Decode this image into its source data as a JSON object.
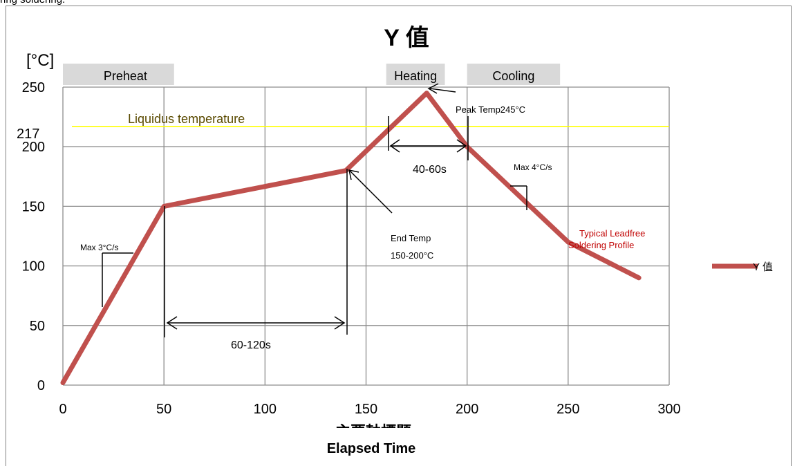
{
  "caption": "ring soldering.",
  "chart_data": {
    "type": "line",
    "title": "Y 值",
    "xlabel": "",
    "x_axis_title_clipped": "主要軸標題",
    "bottom_title": "Elapsed Time",
    "ylabel": "[°C]",
    "xlim": [
      0,
      300
    ],
    "ylim": [
      0,
      250
    ],
    "x_ticks": [
      "0",
      "50",
      "100",
      "150",
      "200",
      "250",
      "300"
    ],
    "y_ticks": [
      "0",
      "50",
      "100",
      "150",
      "200",
      "250"
    ],
    "grid": true,
    "legend_position": "right",
    "series": [
      {
        "name": "Y 值",
        "color": "#c0504d",
        "x": [
          0,
          50,
          140,
          180,
          200,
          250,
          285
        ],
        "y": [
          2,
          150,
          180,
          245,
          200,
          120,
          90
        ]
      }
    ],
    "liquidus": {
      "value": 217,
      "label": "Liquidus temperature",
      "tick_label": "217",
      "color": "#ffff00"
    },
    "phases": [
      {
        "label": "Preheat",
        "x_start": 0,
        "x_end": 55
      },
      {
        "label": "Heating",
        "x_start": 160,
        "x_end": 189
      },
      {
        "label": "Cooling",
        "x_start": 200,
        "x_end": 246
      }
    ],
    "annotations": {
      "peak": "Peak Temp245°C",
      "duration_liquidus": "40-60s",
      "cool_rate": "Max 4°C/s",
      "profile_line1": "Typical Leadfree",
      "profile_line2": "Soldering Profile",
      "end_temp_line1": "End Temp",
      "end_temp_line2": "150-200°C",
      "heat_rate": "Max 3°C/s",
      "duration_preheat": "60-120s"
    },
    "annotation_color_profile": "#c00000",
    "annotation_color_liquidus": "#5a4a00"
  }
}
